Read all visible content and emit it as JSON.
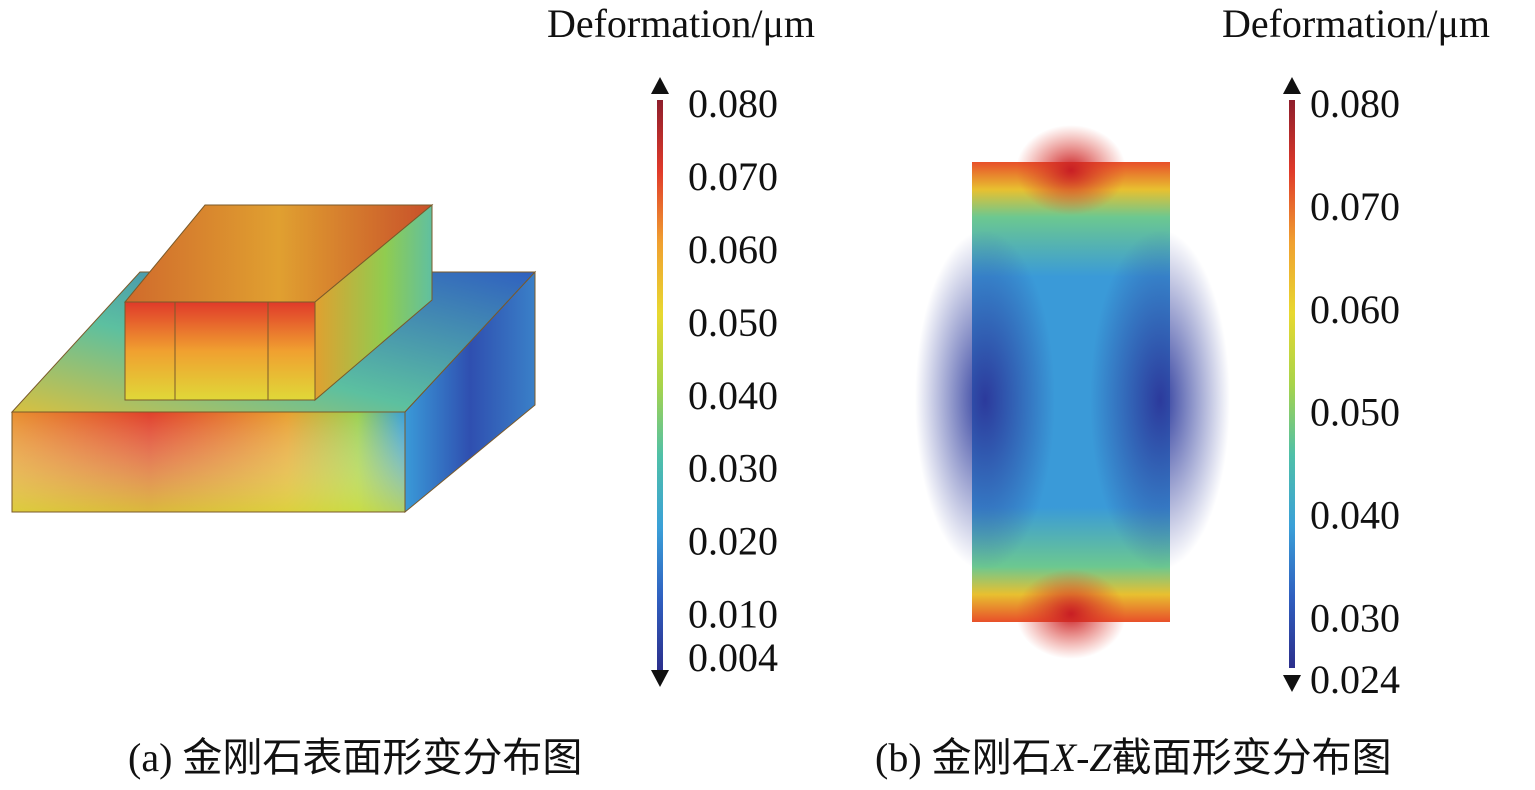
{
  "panels": [
    {
      "colorbar_title": "Deformation/μm",
      "colors": [
        "#2c2f8c",
        "#2f5fc0",
        "#3aa0d8",
        "#4fc0a8",
        "#a8d44a",
        "#e8d830",
        "#f0a030",
        "#e03a2a",
        "#8e1e2c"
      ],
      "ylim": [
        0.004,
        0.08
      ],
      "ticks": [
        {
          "value": 0.08,
          "label": "0.080"
        },
        {
          "value": 0.07,
          "label": "0.070"
        },
        {
          "value": 0.06,
          "label": "0.060"
        },
        {
          "value": 0.05,
          "label": "0.050"
        },
        {
          "value": 0.04,
          "label": "0.040"
        },
        {
          "value": 0.03,
          "label": "0.030"
        },
        {
          "value": 0.02,
          "label": "0.020"
        },
        {
          "value": 0.01,
          "label": "0.010"
        },
        {
          "value": 0.004,
          "label": "0.004"
        }
      ],
      "caption": [
        {
          "text": "(a) 金刚石表面形变分布图",
          "italic": false
        }
      ]
    },
    {
      "colorbar_title": "Deformation/μm",
      "colors": [
        "#2c2f8c",
        "#2f5fc0",
        "#3aa0d8",
        "#4fc0a8",
        "#a8d44a",
        "#e8d830",
        "#f0a030",
        "#e03a2a",
        "#8e1e2c"
      ],
      "ylim": [
        0.024,
        0.08
      ],
      "ticks": [
        {
          "value": 0.08,
          "label": "0.080"
        },
        {
          "value": 0.07,
          "label": "0.070"
        },
        {
          "value": 0.06,
          "label": "0.060"
        },
        {
          "value": 0.05,
          "label": "0.050"
        },
        {
          "value": 0.04,
          "label": "0.040"
        },
        {
          "value": 0.03,
          "label": "0.030"
        },
        {
          "value": 0.024,
          "label": "0.024"
        }
      ],
      "caption": [
        {
          "text": "(b) 金刚石",
          "italic": false
        },
        {
          "text": "X-Z",
          "italic": true
        },
        {
          "text": "截面形变分布图",
          "italic": false
        }
      ]
    }
  ]
}
